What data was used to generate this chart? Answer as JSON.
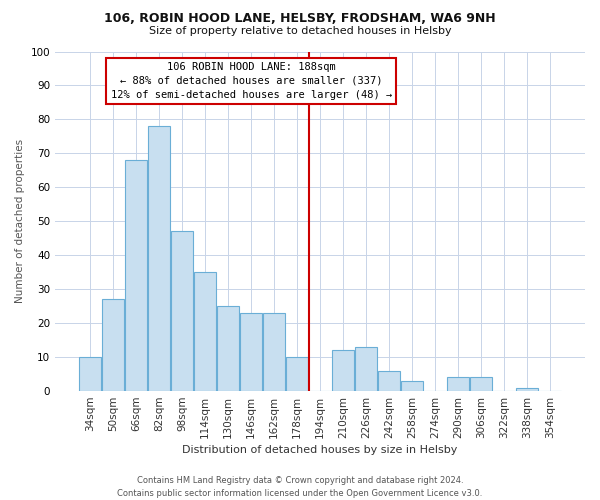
{
  "title1": "106, ROBIN HOOD LANE, HELSBY, FRODSHAM, WA6 9NH",
  "title2": "Size of property relative to detached houses in Helsby",
  "xlabel": "Distribution of detached houses by size in Helsby",
  "ylabel": "Number of detached properties",
  "categories": [
    "34sqm",
    "50sqm",
    "66sqm",
    "82sqm",
    "98sqm",
    "114sqm",
    "130sqm",
    "146sqm",
    "162sqm",
    "178sqm",
    "194sqm",
    "210sqm",
    "226sqm",
    "242sqm",
    "258sqm",
    "274sqm",
    "290sqm",
    "306sqm",
    "322sqm",
    "338sqm",
    "354sqm"
  ],
  "values": [
    10,
    27,
    68,
    78,
    47,
    35,
    25,
    23,
    23,
    10,
    0,
    12,
    13,
    6,
    3,
    0,
    4,
    4,
    0,
    1,
    0
  ],
  "bar_color": "#c8dff0",
  "bar_edge_color": "#6aaed6",
  "vline_color": "#cc0000",
  "annotation_text": "106 ROBIN HOOD LANE: 188sqm\n← 88% of detached houses are smaller (337)\n12% of semi-detached houses are larger (48) →",
  "annotation_box_color": "#ffffff",
  "annotation_box_edge": "#cc0000",
  "ylim": [
    0,
    100
  ],
  "yticks": [
    0,
    10,
    20,
    30,
    40,
    50,
    60,
    70,
    80,
    90,
    100
  ],
  "footer1": "Contains HM Land Registry data © Crown copyright and database right 2024.",
  "footer2": "Contains public sector information licensed under the Open Government Licence v3.0.",
  "background_color": "#ffffff",
  "grid_color": "#c8d4e8"
}
